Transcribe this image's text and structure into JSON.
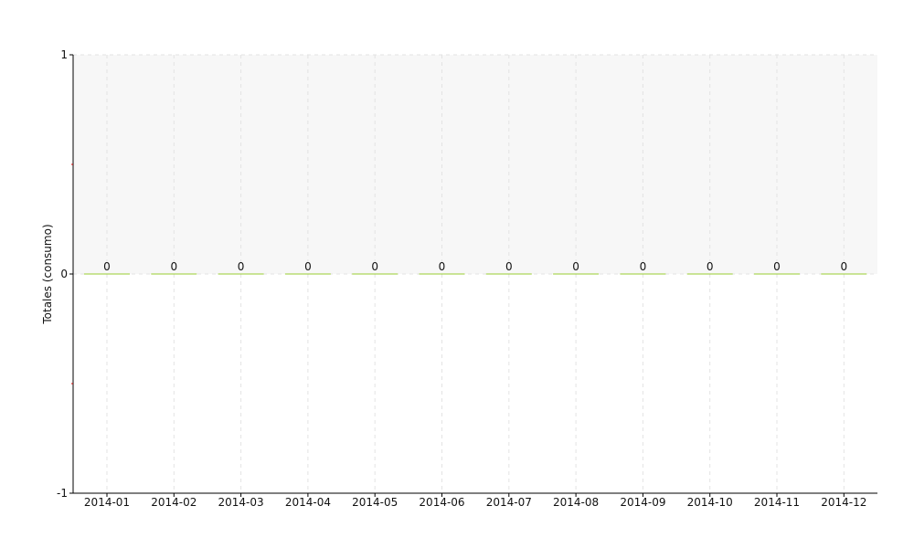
{
  "chart_data": {
    "type": "bar",
    "title": "",
    "xlabel": "",
    "ylabel": "Totales (consumo)",
    "categories": [
      "2014-01",
      "2014-02",
      "2014-03",
      "2014-04",
      "2014-05",
      "2014-06",
      "2014-07",
      "2014-08",
      "2014-09",
      "2014-10",
      "2014-11",
      "2014-12"
    ],
    "values": [
      0,
      0,
      0,
      0,
      0,
      0,
      0,
      0,
      0,
      0,
      0,
      0
    ],
    "data_labels": [
      "0",
      "0",
      "0",
      "0",
      "0",
      "0",
      "0",
      "0",
      "0",
      "0",
      "0",
      "0"
    ],
    "ylim": [
      -1,
      1
    ],
    "yticks": [
      -1,
      0,
      1
    ],
    "ytick_labels": [
      "-1",
      "0",
      "1"
    ],
    "grid": true,
    "legend": "none",
    "colors": {
      "bar": "#9acd32",
      "plot_background_upper": "#f7f7f7",
      "grid": "#e3e3e3",
      "axis": "#000000",
      "minor_tick": "#cc0000"
    }
  }
}
